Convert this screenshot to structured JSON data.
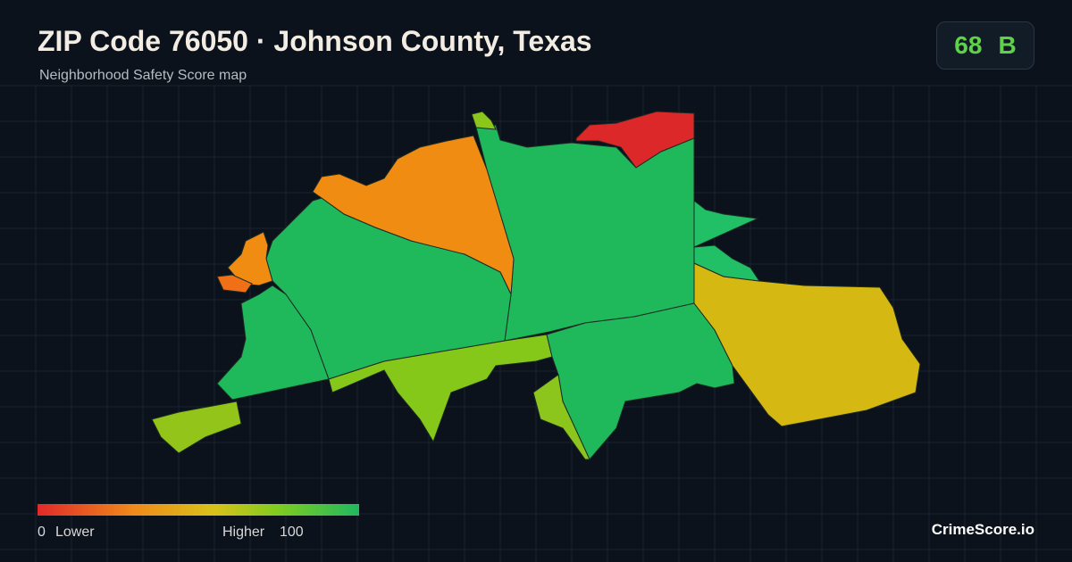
{
  "header": {
    "title": "ZIP Code 76050 · Johnson County, Texas",
    "subtitle": "Neighborhood Safety Score map"
  },
  "score": {
    "value": 68,
    "grade": "B"
  },
  "legend": {
    "min": 0,
    "min_label": "Lower",
    "max_label": "Higher",
    "max": 100
  },
  "brand": "CrimeScore.io"
}
